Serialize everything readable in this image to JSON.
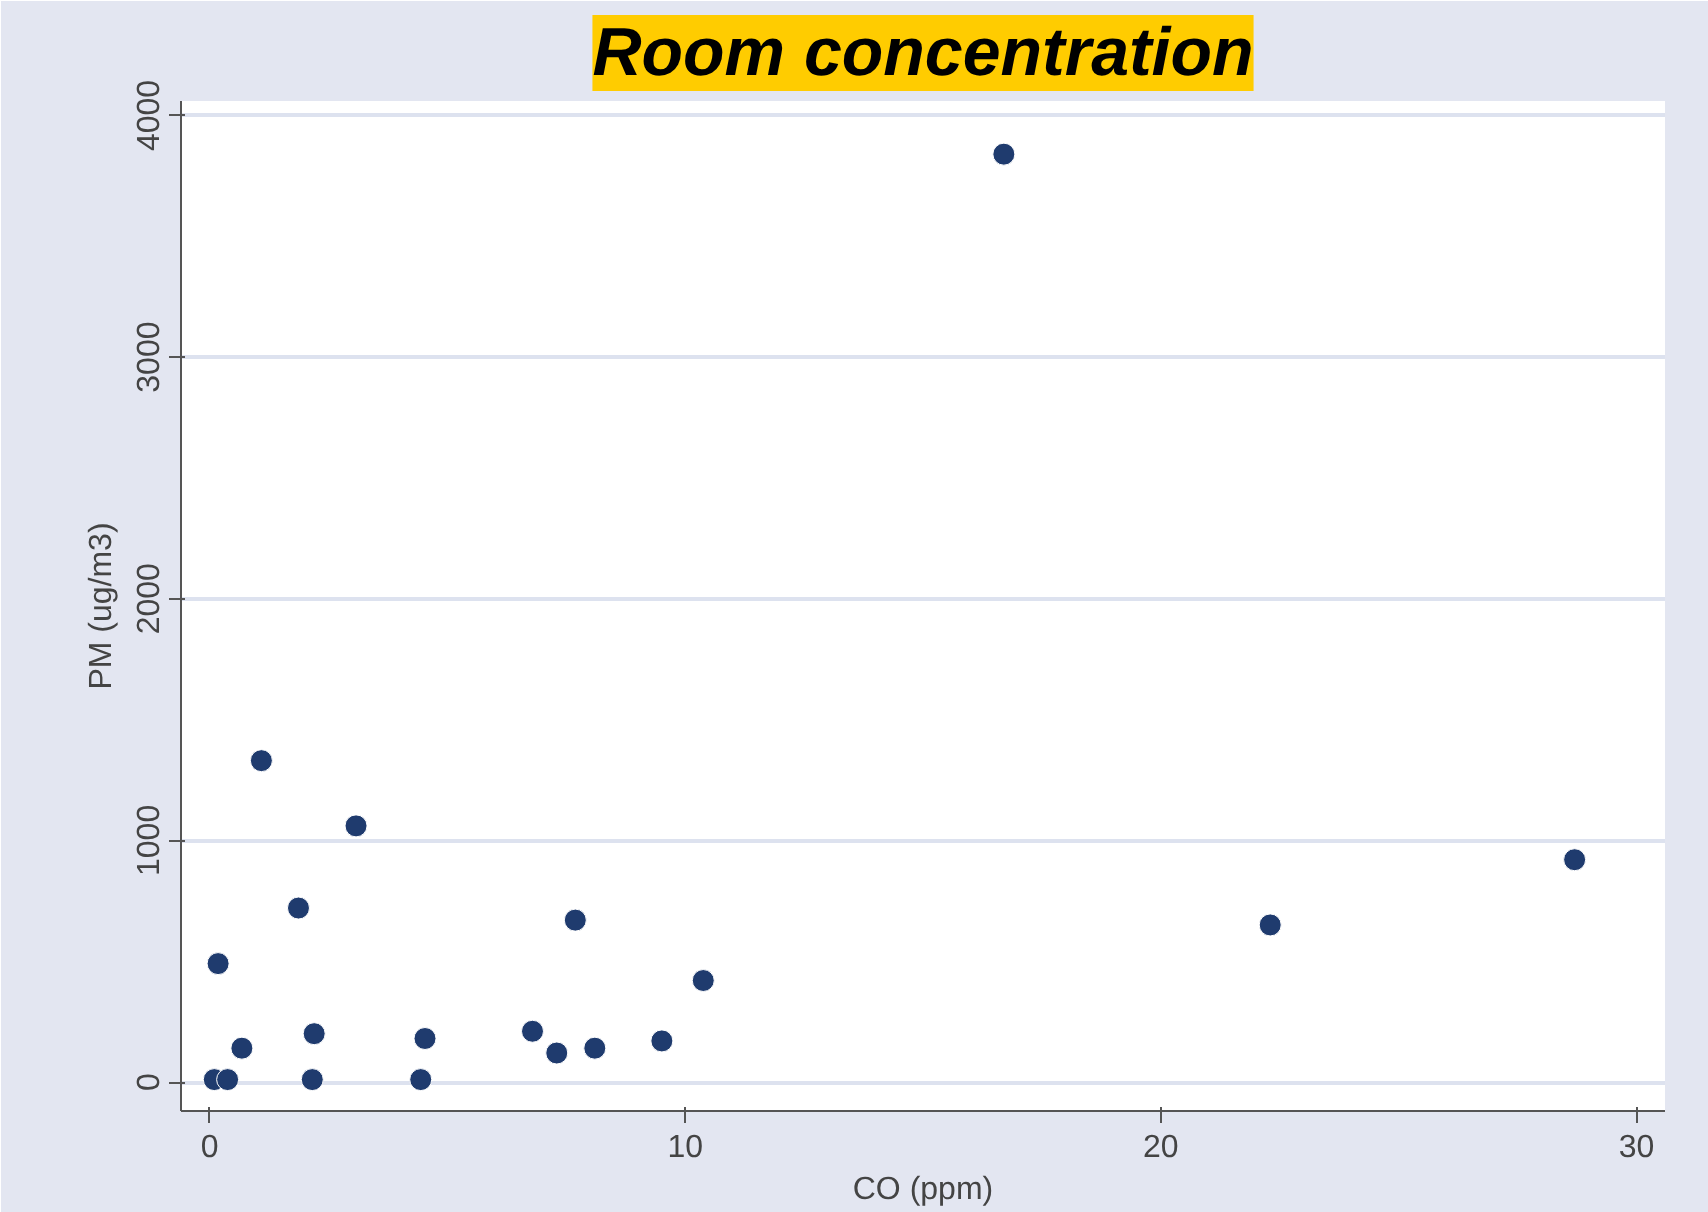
{
  "chart_data": {
    "type": "scatter",
    "title": "Room concentration",
    "xlabel": "CO (ppm)",
    "ylabel": "PM (ug/m3)",
    "x": [
      0.18,
      0.1,
      0.38,
      0.68,
      1.09,
      1.87,
      2.16,
      2.2,
      3.08,
      4.44,
      4.53,
      6.79,
      7.3,
      7.69,
      8.1,
      9.51,
      10.38,
      16.7,
      22.3,
      28.7
    ],
    "series": [
      {
        "color": "#1f3b6e",
        "values": [
          490,
          10,
          10,
          140,
          1330,
          720,
          10,
          200,
          1060,
          10,
          180,
          210,
          120,
          670,
          140,
          170,
          420,
          3840,
          650,
          920
        ]
      }
    ],
    "xlim": [
      -0.6,
      30.6
    ],
    "ylim": [
      -120,
      4060
    ],
    "xticks": [
      0,
      10,
      20,
      30
    ],
    "yticks": [
      0,
      1000,
      2000,
      3000,
      4000
    ],
    "grid": "y",
    "marker": "circle"
  }
}
